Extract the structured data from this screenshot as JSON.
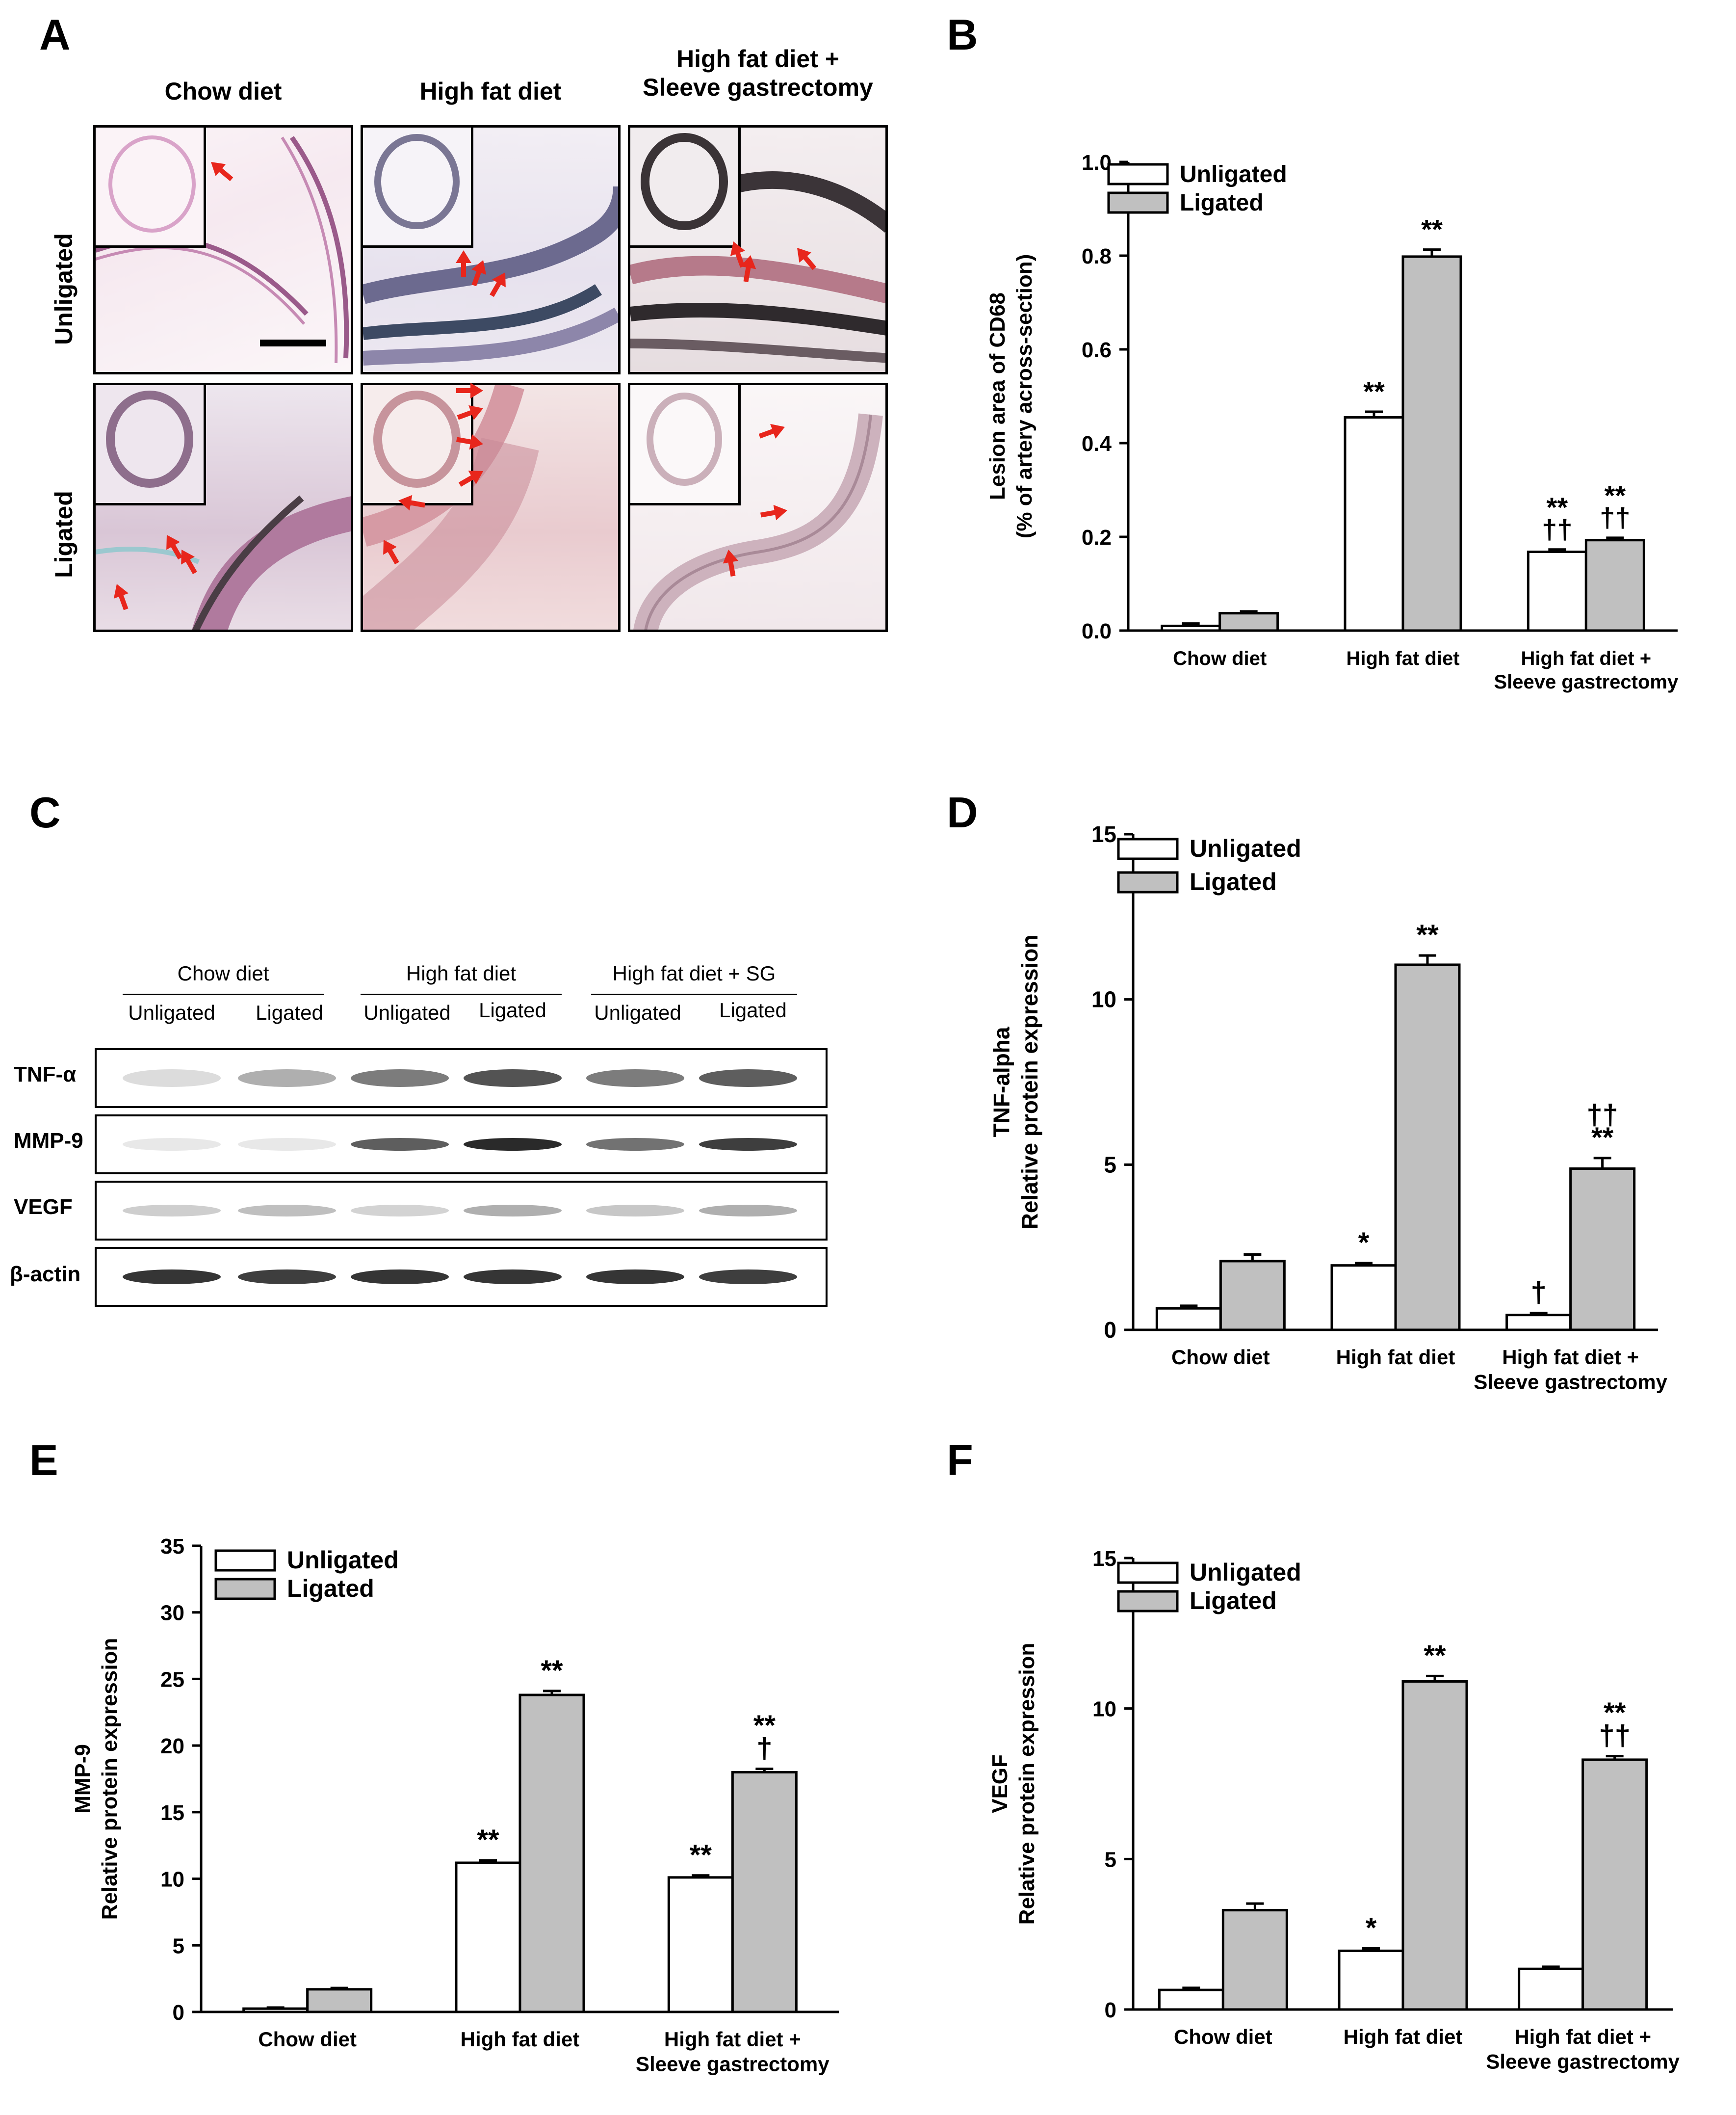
{
  "panels": {
    "A": {
      "letter": "A",
      "columns": [
        "Chow diet",
        "High fat diet",
        "High fat diet +\nSleeve gastrectomy"
      ],
      "rows": [
        "Unligated",
        "Ligated"
      ]
    },
    "B": {
      "letter": "B"
    },
    "C": {
      "letter": "C",
      "groups": [
        "Chow diet",
        "High fat diet",
        "High fat diet + SG"
      ],
      "lanes": [
        "Unligated",
        "Ligated",
        "Unligated",
        "Ligated",
        "Unligated",
        "Ligated"
      ],
      "proteins": [
        "TNF-α",
        "MMP-9",
        "VEGF",
        "β-actin"
      ]
    },
    "D": {
      "letter": "D"
    },
    "E": {
      "letter": "E"
    },
    "F": {
      "letter": "F"
    }
  },
  "colors": {
    "unligated": "#ffffff",
    "ligated": "#c0c0c0",
    "arrow": "#e8261c",
    "axis": "#000000"
  },
  "chart_data": [
    {
      "id": "B",
      "type": "bar",
      "categories": [
        "Chow diet",
        "High fat diet",
        "High fat diet +\nSleeve gastrectomy"
      ],
      "series": [
        {
          "name": "Unligated",
          "values": [
            0.01,
            0.455,
            0.168
          ],
          "errors": [
            0.005,
            0.012,
            0.005
          ],
          "annotations": [
            "",
            "**",
            "**\n††"
          ]
        },
        {
          "name": "Ligated",
          "values": [
            0.037,
            0.798,
            0.193
          ],
          "errors": [
            0.004,
            0.015,
            0.005
          ],
          "annotations": [
            "",
            "**",
            "**\n††"
          ]
        }
      ],
      "ylabel": "Lesion area of CD68\n(% of artery across-section)",
      "ylim": [
        0,
        1.0
      ],
      "yticks": [
        "0.0",
        "0.2",
        "0.4",
        "0.6",
        "0.8",
        "1.0"
      ],
      "legend": "top-left"
    },
    {
      "id": "D",
      "type": "bar",
      "categories": [
        "Chow diet",
        "High fat diet",
        "High fat diet +\nSleeve gastrectomy"
      ],
      "series": [
        {
          "name": "Unligated",
          "values": [
            0.65,
            1.95,
            0.45
          ],
          "errors": [
            0.08,
            0.07,
            0.06
          ],
          "annotations": [
            "",
            "*",
            "†"
          ]
        },
        {
          "name": "Ligated",
          "values": [
            2.08,
            11.05,
            4.88
          ],
          "errors": [
            0.2,
            0.28,
            0.32
          ],
          "annotations": [
            "",
            "**",
            "††\n**"
          ]
        }
      ],
      "ylabel": "TNF-alpha\nRelative protein expression",
      "ylim": [
        0,
        15
      ],
      "yticks": [
        "0",
        "5",
        "10",
        "15"
      ],
      "legend": "top-left"
    },
    {
      "id": "E",
      "type": "bar",
      "categories": [
        "Chow diet",
        "High fat diet",
        "High fat diet +\nSleeve gastrectomy"
      ],
      "series": [
        {
          "name": "Unligated",
          "values": [
            0.25,
            11.2,
            10.1
          ],
          "errors": [
            0.08,
            0.18,
            0.15
          ],
          "annotations": [
            "",
            "**",
            "**"
          ]
        },
        {
          "name": "Ligated",
          "values": [
            1.7,
            23.8,
            18.0
          ],
          "errors": [
            0.1,
            0.3,
            0.25
          ],
          "annotations": [
            "",
            "**",
            "**\n†"
          ]
        }
      ],
      "ylabel": "MMP-9\nRelative protein expression",
      "ylim": [
        0,
        35
      ],
      "yticks": [
        "0",
        "5",
        "10",
        "15",
        "20",
        "25",
        "30",
        "35"
      ],
      "legend": "top-left"
    },
    {
      "id": "F",
      "type": "bar",
      "categories": [
        "Chow diet",
        "High fat diet",
        "High fat diet +\nSleeve gastrectomy"
      ],
      "series": [
        {
          "name": "Unligated",
          "values": [
            0.65,
            1.95,
            1.35
          ],
          "errors": [
            0.07,
            0.08,
            0.07
          ],
          "annotations": [
            "",
            "*",
            ""
          ]
        },
        {
          "name": "Ligated",
          "values": [
            3.3,
            10.9,
            8.3
          ],
          "errors": [
            0.22,
            0.18,
            0.12
          ],
          "annotations": [
            "",
            "**",
            "**\n††"
          ]
        }
      ],
      "ylabel": "VEGF\nRelative protein expression",
      "ylim": [
        0,
        15
      ],
      "yticks": [
        "0",
        "5",
        "10",
        "15"
      ],
      "legend": "top-left"
    }
  ]
}
